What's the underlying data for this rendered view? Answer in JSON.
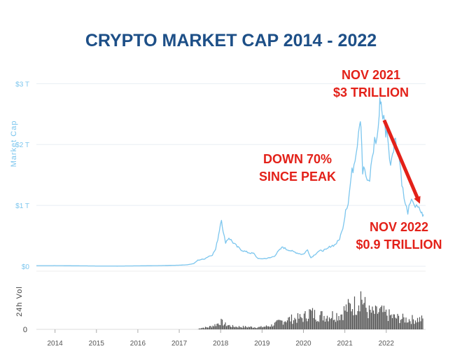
{
  "chart_data": {
    "type": "line",
    "title": "CRYPTO MARKET CAP 2014 - 2022",
    "ylabel": "Market Cap",
    "ylabel_volume": "24h Vol",
    "yticks": [
      {
        "value": 0,
        "label": "$0"
      },
      {
        "value": 1,
        "label": "$1 T"
      },
      {
        "value": 2,
        "label": "$2 T"
      },
      {
        "value": 3,
        "label": "$3 T"
      }
    ],
    "ylim": [
      0,
      3.05
    ],
    "volume_ytick": "0",
    "x_labels": [
      "2014",
      "2015",
      "2016",
      "2017",
      "2018",
      "2019",
      "2020",
      "2021",
      "2022"
    ],
    "xlim": [
      2013.55,
      2022.95
    ],
    "series": [
      {
        "name": "Market Cap ($T)",
        "color": "#7cc6ee",
        "points": [
          [
            2013.55,
            0.01
          ],
          [
            2014.0,
            0.011
          ],
          [
            2014.5,
            0.008
          ],
          [
            2015.0,
            0.005
          ],
          [
            2015.5,
            0.004
          ],
          [
            2016.0,
            0.007
          ],
          [
            2016.5,
            0.011
          ],
          [
            2017.0,
            0.018
          ],
          [
            2017.2,
            0.025
          ],
          [
            2017.35,
            0.045
          ],
          [
            2017.45,
            0.1
          ],
          [
            2017.6,
            0.12
          ],
          [
            2017.7,
            0.16
          ],
          [
            2017.8,
            0.19
          ],
          [
            2017.88,
            0.28
          ],
          [
            2017.93,
            0.45
          ],
          [
            2017.97,
            0.6
          ],
          [
            2018.02,
            0.8
          ],
          [
            2018.06,
            0.55
          ],
          [
            2018.12,
            0.4
          ],
          [
            2018.2,
            0.47
          ],
          [
            2018.3,
            0.39
          ],
          [
            2018.4,
            0.32
          ],
          [
            2018.5,
            0.27
          ],
          [
            2018.6,
            0.24
          ],
          [
            2018.7,
            0.22
          ],
          [
            2018.8,
            0.21
          ],
          [
            2018.88,
            0.14
          ],
          [
            2018.95,
            0.12
          ],
          [
            2019.0,
            0.125
          ],
          [
            2019.1,
            0.13
          ],
          [
            2019.2,
            0.14
          ],
          [
            2019.3,
            0.17
          ],
          [
            2019.4,
            0.25
          ],
          [
            2019.5,
            0.32
          ],
          [
            2019.58,
            0.28
          ],
          [
            2019.65,
            0.27
          ],
          [
            2019.75,
            0.24
          ],
          [
            2019.85,
            0.22
          ],
          [
            2019.95,
            0.2
          ],
          [
            2020.0,
            0.2
          ],
          [
            2020.1,
            0.27
          ],
          [
            2020.18,
            0.14
          ],
          [
            2020.25,
            0.18
          ],
          [
            2020.35,
            0.24
          ],
          [
            2020.45,
            0.26
          ],
          [
            2020.55,
            0.27
          ],
          [
            2020.65,
            0.33
          ],
          [
            2020.75,
            0.35
          ],
          [
            2020.85,
            0.42
          ],
          [
            2020.92,
            0.55
          ],
          [
            2020.98,
            0.75
          ],
          [
            2021.02,
            0.95
          ],
          [
            2021.08,
            1.05
          ],
          [
            2021.15,
            1.45
          ],
          [
            2021.22,
            1.7
          ],
          [
            2021.3,
            2.05
          ],
          [
            2021.36,
            2.45
          ],
          [
            2021.39,
            2.4
          ],
          [
            2021.43,
            1.55
          ],
          [
            2021.48,
            1.6
          ],
          [
            2021.54,
            1.35
          ],
          [
            2021.6,
            1.42
          ],
          [
            2021.66,
            1.8
          ],
          [
            2021.72,
            2.05
          ],
          [
            2021.78,
            2.1
          ],
          [
            2021.83,
            2.5
          ],
          [
            2021.86,
            2.8
          ],
          [
            2021.89,
            2.6
          ],
          [
            2021.94,
            2.4
          ],
          [
            2021.99,
            2.2
          ],
          [
            2022.03,
            2.25
          ],
          [
            2022.08,
            1.7
          ],
          [
            2022.13,
            1.8
          ],
          [
            2022.2,
            2.1
          ],
          [
            2022.27,
            1.95
          ],
          [
            2022.33,
            1.7
          ],
          [
            2022.4,
            1.25
          ],
          [
            2022.46,
            1.0
          ],
          [
            2022.52,
            0.9
          ],
          [
            2022.58,
            1.0
          ],
          [
            2022.64,
            1.1
          ],
          [
            2022.7,
            0.98
          ],
          [
            2022.76,
            0.95
          ],
          [
            2022.82,
            0.92
          ],
          [
            2022.86,
            0.86
          ],
          [
            2022.9,
            0.85
          ]
        ]
      }
    ],
    "volume": {
      "name": "24h Vol",
      "color": "#555555",
      "envelope": [
        [
          2013.55,
          0.0
        ],
        [
          2017.45,
          0.0
        ],
        [
          2017.5,
          0.04
        ],
        [
          2017.7,
          0.06
        ],
        [
          2017.8,
          0.1
        ],
        [
          2017.9,
          0.14
        ],
        [
          2018.0,
          0.22
        ],
        [
          2018.1,
          0.14
        ],
        [
          2018.3,
          0.08
        ],
        [
          2018.6,
          0.07
        ],
        [
          2018.95,
          0.06
        ],
        [
          2019.2,
          0.1
        ],
        [
          2019.45,
          0.22
        ],
        [
          2019.6,
          0.28
        ],
        [
          2019.8,
          0.3
        ],
        [
          2020.0,
          0.33
        ],
        [
          2020.15,
          0.48
        ],
        [
          2020.3,
          0.4
        ],
        [
          2020.5,
          0.38
        ],
        [
          2020.7,
          0.4
        ],
        [
          2020.9,
          0.42
        ],
        [
          2021.0,
          0.55
        ],
        [
          2021.15,
          0.65
        ],
        [
          2021.3,
          0.7
        ],
        [
          2021.38,
          1.0
        ],
        [
          2021.45,
          0.75
        ],
        [
          2021.55,
          0.5
        ],
        [
          2021.7,
          0.45
        ],
        [
          2021.86,
          0.5
        ],
        [
          2022.0,
          0.42
        ],
        [
          2022.2,
          0.33
        ],
        [
          2022.4,
          0.3
        ],
        [
          2022.5,
          0.28
        ],
        [
          2022.7,
          0.28
        ],
        [
          2022.9,
          0.28
        ]
      ]
    },
    "annotations": [
      {
        "lines": [
          "NOV 2021",
          "$3 TRILLION"
        ],
        "color": "#e32119",
        "target": [
          2021.86,
          2.8
        ]
      },
      {
        "lines": [
          "DOWN 70%",
          "SINCE PEAK"
        ],
        "color": "#e32119"
      },
      {
        "lines": [
          "NOV 2022",
          "$0.9 TRILLION"
        ],
        "color": "#e32119",
        "target": [
          2022.86,
          0.86
        ]
      }
    ],
    "arrow": {
      "from": [
        2021.95,
        2.4
      ],
      "to": [
        2022.78,
        1.08
      ],
      "color": "#e32119"
    }
  }
}
